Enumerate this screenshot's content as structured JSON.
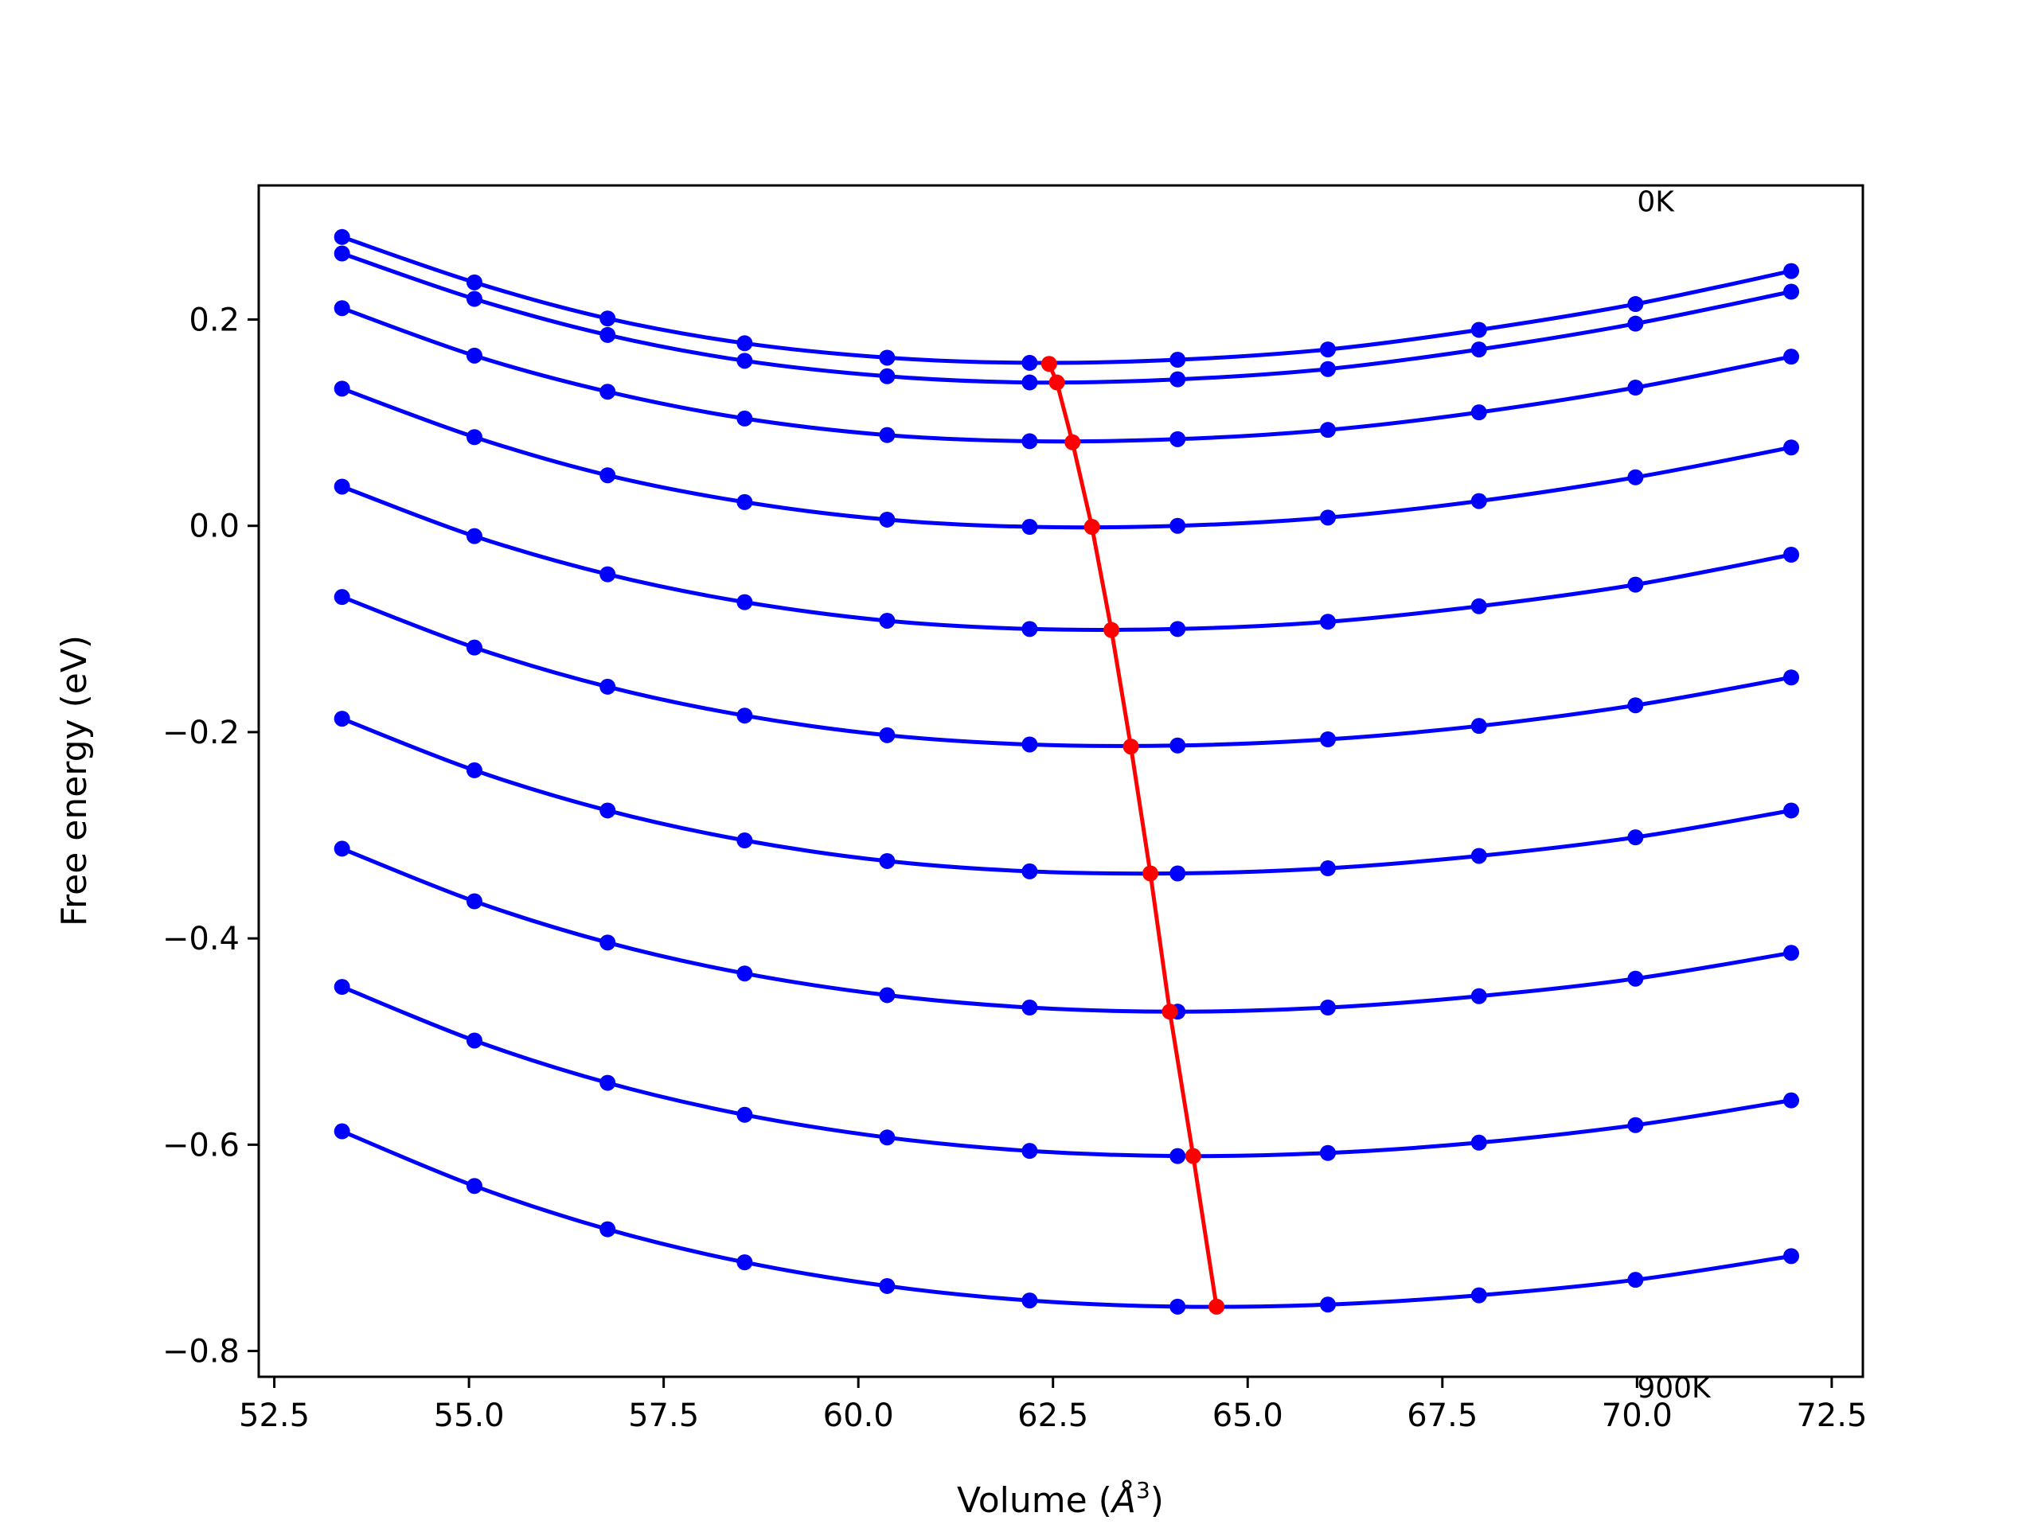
{
  "chart_data": {
    "type": "line",
    "title": "",
    "xlabel": "Volume (",
    "xlabel_unit": "Å",
    "xlabel_exp": "3",
    "xlabel_close": ")",
    "ylabel": "Free energy (eV)",
    "xlim": [
      52.3,
      72.9
    ],
    "ylim": [
      -0.825,
      0.33
    ],
    "xticks": [
      52.5,
      55.0,
      57.5,
      60.0,
      62.5,
      65.0,
      67.5,
      70.0,
      72.5
    ],
    "xtick_labels": [
      "52.5",
      "55.0",
      "57.5",
      "60.0",
      "62.5",
      "65.0",
      "67.5",
      "70.0",
      "72.5"
    ],
    "yticks": [
      0.2,
      0.0,
      -0.2,
      -0.4,
      -0.6,
      -0.8
    ],
    "ytick_labels": [
      "0.2",
      "0.0",
      "−0.2",
      "−0.4",
      "−0.6",
      "−0.8"
    ],
    "grid": false,
    "annotations": [
      {
        "text": "0K",
        "x": 70.0,
        "y": 0.305
      },
      {
        "text": "900K",
        "x": 70.0,
        "y": -0.845
      }
    ],
    "volumes": [
      53.37,
      55.07,
      56.78,
      58.54,
      60.37,
      62.2,
      64.1,
      66.03,
      67.97,
      69.98,
      71.98
    ],
    "series": [
      {
        "values": [
          0.28,
          0.236,
          0.201,
          0.177,
          0.163,
          0.158,
          0.161,
          0.171,
          0.19,
          0.215,
          0.247
        ],
        "min": {
          "x": 62.45,
          "y": 0.157
        }
      },
      {
        "values": [
          0.264,
          0.22,
          0.185,
          0.16,
          0.145,
          0.139,
          0.142,
          0.152,
          0.171,
          0.196,
          0.227
        ],
        "min": {
          "x": 62.55,
          "y": 0.139
        }
      },
      {
        "values": [
          0.211,
          0.165,
          0.13,
          0.104,
          0.088,
          0.082,
          0.084,
          0.093,
          0.11,
          0.134,
          0.164
        ],
        "min": {
          "x": 62.75,
          "y": 0.081
        }
      },
      {
        "values": [
          0.133,
          0.086,
          0.049,
          0.023,
          0.006,
          -0.001,
          0.0,
          0.008,
          0.024,
          0.047,
          0.076
        ],
        "min": {
          "x": 63.0,
          "y": -0.001
        }
      },
      {
        "values": [
          0.038,
          -0.01,
          -0.047,
          -0.074,
          -0.092,
          -0.1,
          -0.1,
          -0.093,
          -0.078,
          -0.057,
          -0.028
        ],
        "min": {
          "x": 63.25,
          "y": -0.101
        }
      },
      {
        "values": [
          -0.069,
          -0.118,
          -0.156,
          -0.184,
          -0.203,
          -0.212,
          -0.213,
          -0.207,
          -0.194,
          -0.174,
          -0.147
        ],
        "min": {
          "x": 63.5,
          "y": -0.214
        }
      },
      {
        "values": [
          -0.187,
          -0.237,
          -0.276,
          -0.305,
          -0.325,
          -0.335,
          -0.337,
          -0.332,
          -0.32,
          -0.302,
          -0.276
        ],
        "min": {
          "x": 63.75,
          "y": -0.337
        }
      },
      {
        "values": [
          -0.313,
          -0.364,
          -0.404,
          -0.434,
          -0.455,
          -0.467,
          -0.471,
          -0.467,
          -0.456,
          -0.439,
          -0.414
        ],
        "min": {
          "x": 64.0,
          "y": -0.471
        }
      },
      {
        "values": [
          -0.447,
          -0.499,
          -0.54,
          -0.571,
          -0.593,
          -0.606,
          -0.611,
          -0.608,
          -0.598,
          -0.581,
          -0.557
        ],
        "min": {
          "x": 64.3,
          "y": -0.611
        }
      },
      {
        "values": [
          -0.587,
          -0.64,
          -0.682,
          -0.714,
          -0.737,
          -0.751,
          -0.757,
          -0.755,
          -0.746,
          -0.731,
          -0.708
        ],
        "min": {
          "x": 64.6,
          "y": -0.757
        }
      }
    ],
    "colors": {
      "curves": "#0000ff",
      "minima": "#ff0000",
      "axes": "#000000"
    }
  }
}
